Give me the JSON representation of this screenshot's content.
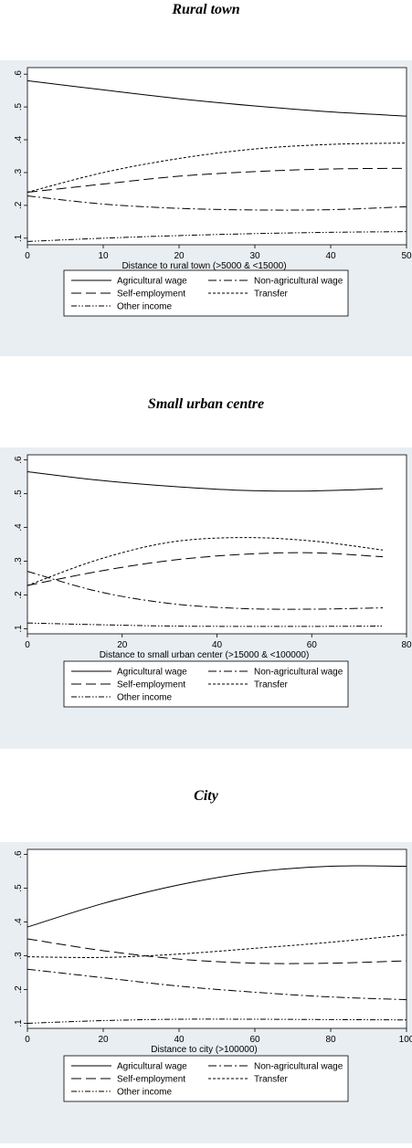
{
  "panels": [
    {
      "title": "Rural town"
    },
    {
      "title": "Small urban centre"
    },
    {
      "title": "City"
    }
  ],
  "chart_data": [
    {
      "type": "line",
      "title": "Rural town",
      "xlabel": "Distance to rural town (>5000 & <15000)",
      "ylabel": "",
      "xlim": [
        0,
        50
      ],
      "ylim": [
        0.08,
        0.62
      ],
      "xticks": [
        0,
        10,
        20,
        30,
        40,
        50
      ],
      "xtick_labels": [
        "0",
        "10",
        "20",
        "30",
        "40",
        "50"
      ],
      "yticks": [
        0.1,
        0.2,
        0.3,
        0.4,
        0.5,
        0.6
      ],
      "ytick_labels": [
        ".1",
        ".2",
        ".3",
        ".4",
        ".5",
        ".6"
      ],
      "grid": false,
      "legend": "bottom",
      "x": [
        0,
        10,
        20,
        30,
        40,
        50
      ],
      "series": [
        {
          "name": "Agricultural wage",
          "dash": "solid",
          "values": [
            0.58,
            0.552,
            0.525,
            0.503,
            0.485,
            0.472
          ]
        },
        {
          "name": "Non-agricultural wage",
          "dash": "dashdot",
          "values": [
            0.229,
            0.204,
            0.191,
            0.186,
            0.187,
            0.196
          ]
        },
        {
          "name": "Self-employment",
          "dash": "longdash",
          "values": [
            0.24,
            0.265,
            0.289,
            0.303,
            0.311,
            0.313
          ]
        },
        {
          "name": "Transfer",
          "dash": "shortdash",
          "values": [
            0.24,
            0.3,
            0.343,
            0.372,
            0.386,
            0.39
          ]
        },
        {
          "name": "Other income",
          "dash": "dashdotdot",
          "values": [
            0.09,
            0.1,
            0.108,
            0.114,
            0.118,
            0.12
          ]
        }
      ]
    },
    {
      "type": "line",
      "title": "Small urban centre",
      "xlabel": "Distance to small urban center (>15000 & <100000)",
      "ylabel": "",
      "xlim": [
        0,
        80
      ],
      "ylim": [
        0.085,
        0.615
      ],
      "xticks": [
        0,
        20,
        40,
        60,
        80
      ],
      "xtick_labels": [
        "0",
        "20",
        "40",
        "60",
        "80"
      ],
      "yticks": [
        0.1,
        0.2,
        0.3,
        0.4,
        0.5,
        0.6
      ],
      "ytick_labels": [
        ".1",
        ".2",
        ".3",
        ".4",
        ".5",
        ".6"
      ],
      "grid": false,
      "legend": "bottom",
      "x": [
        0,
        15,
        30,
        45,
        60,
        75
      ],
      "series": [
        {
          "name": "Agricultural wage",
          "dash": "solid",
          "values": [
            0.565,
            0.54,
            0.522,
            0.51,
            0.508,
            0.515
          ]
        },
        {
          "name": "Non-agricultural wage",
          "dash": "dashdot",
          "values": [
            0.27,
            0.21,
            0.175,
            0.16,
            0.158,
            0.162
          ]
        },
        {
          "name": "Self-employment",
          "dash": "longdash",
          "values": [
            0.228,
            0.27,
            0.302,
            0.32,
            0.325,
            0.313
          ]
        },
        {
          "name": "Transfer",
          "dash": "shortdash",
          "values": [
            0.228,
            0.305,
            0.356,
            0.37,
            0.36,
            0.333
          ]
        },
        {
          "name": "Other income",
          "dash": "dashdotdot",
          "values": [
            0.117,
            0.112,
            0.108,
            0.107,
            0.107,
            0.108
          ]
        }
      ]
    },
    {
      "type": "line",
      "title": "City",
      "xlabel": "Distance to city (>100000)",
      "ylabel": "",
      "xlim": [
        0,
        100
      ],
      "ylim": [
        0.085,
        0.615
      ],
      "xticks": [
        0,
        20,
        40,
        60,
        80,
        100
      ],
      "xtick_labels": [
        "0",
        "20",
        "40",
        "60",
        "80",
        "100"
      ],
      "yticks": [
        0.1,
        0.2,
        0.3,
        0.4,
        0.5,
        0.6
      ],
      "ytick_labels": [
        ".1",
        ".2",
        ".3",
        ".4",
        ".5",
        ".6"
      ],
      "grid": false,
      "legend": "bottom",
      "x": [
        0,
        20,
        40,
        60,
        80,
        100
      ],
      "series": [
        {
          "name": "Agricultural wage",
          "dash": "solid",
          "values": [
            0.385,
            0.455,
            0.51,
            0.548,
            0.565,
            0.565
          ]
        },
        {
          "name": "Non-agricultural wage",
          "dash": "dashdot",
          "values": [
            0.26,
            0.235,
            0.21,
            0.192,
            0.178,
            0.17
          ]
        },
        {
          "name": "Self-employment",
          "dash": "longdash",
          "values": [
            0.35,
            0.315,
            0.29,
            0.278,
            0.278,
            0.285
          ]
        },
        {
          "name": "Transfer",
          "dash": "shortdash",
          "values": [
            0.297,
            0.295,
            0.305,
            0.322,
            0.34,
            0.362
          ]
        },
        {
          "name": "Other income",
          "dash": "dashdotdot",
          "values": [
            0.1,
            0.108,
            0.112,
            0.112,
            0.111,
            0.11
          ]
        }
      ]
    }
  ]
}
